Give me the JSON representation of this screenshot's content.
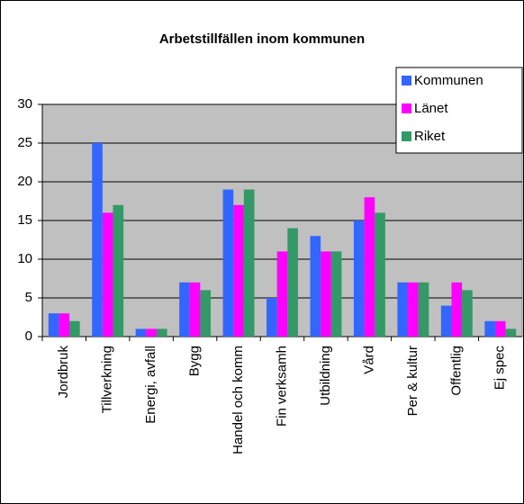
{
  "chart_data": {
    "type": "bar",
    "title": "Arbetstillfällen inom kommunen",
    "categories": [
      "Jordbruk",
      "Tillverkning",
      "Energi, avfall",
      "Bygg",
      "Handel och komm",
      "Fin verksamh",
      "Utbildning",
      "Vård",
      "Per & kultur",
      "Offentlig",
      "Ej spec"
    ],
    "series": [
      {
        "name": "Kommunen",
        "color": "#3366ff",
        "values": [
          3,
          25,
          1,
          7,
          19,
          5,
          13,
          15,
          7,
          4,
          2
        ]
      },
      {
        "name": "Länet",
        "color": "#ff00ff",
        "values": [
          3,
          16,
          1,
          7,
          17,
          11,
          11,
          18,
          7,
          7,
          2
        ]
      },
      {
        "name": "Riket",
        "color": "#339966",
        "values": [
          2,
          17,
          1,
          6,
          19,
          14,
          11,
          16,
          7,
          6,
          1
        ]
      }
    ],
    "ylim": [
      0,
      30
    ],
    "yticks": [
      0,
      5,
      10,
      15,
      20,
      25,
      30
    ],
    "grid": true,
    "legend": "top-right"
  }
}
